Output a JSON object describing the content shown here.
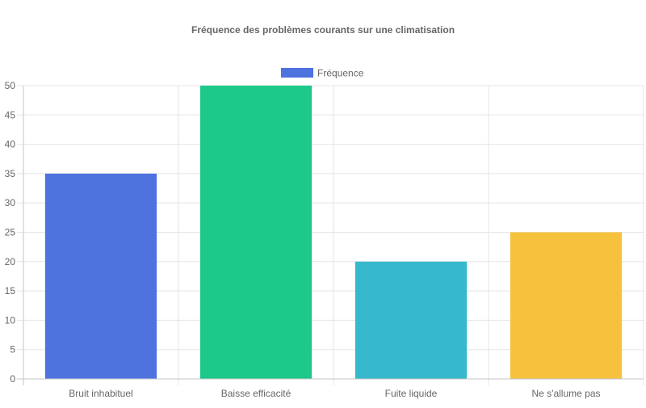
{
  "chart_data": {
    "type": "bar",
    "title": "Fréquence des problèmes courants sur une climatisation",
    "categories": [
      "Bruit inhabituel",
      "Baisse efficacité",
      "Fuite liquide",
      "Ne s'allume pas"
    ],
    "series": [
      {
        "name": "Fréquence",
        "values": [
          35,
          50,
          20,
          25
        ]
      }
    ],
    "bar_colors": [
      "#4e73df",
      "#1cc88a",
      "#36b9cc",
      "#f6c23e"
    ],
    "legend_color": "#4e73df",
    "ylim": [
      0,
      50
    ],
    "yticks": [
      0,
      5,
      10,
      15,
      20,
      25,
      30,
      35,
      40,
      45,
      50
    ],
    "grid": true,
    "legend_position": "top"
  }
}
